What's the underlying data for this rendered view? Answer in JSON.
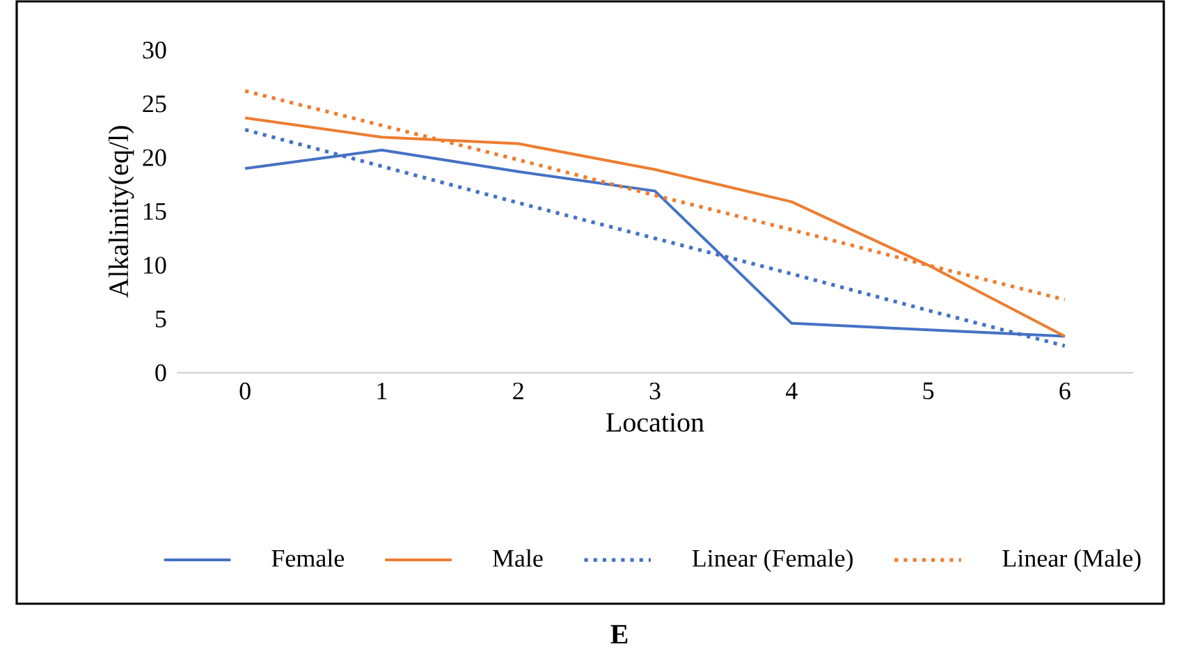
{
  "chart_data": {
    "type": "line",
    "xlabel": "Location",
    "ylabel": "Alkalinity(eq/l)",
    "categories": [
      "0",
      "1",
      "2",
      "3",
      "4",
      "5",
      "6"
    ],
    "series": [
      {
        "name": "Female",
        "color": "#4472c4",
        "values": [
          19.0,
          20.7,
          18.7,
          16.9,
          4.6,
          4.0,
          3.4
        ]
      },
      {
        "name": "Male",
        "color": "#ed7d31",
        "values": [
          23.7,
          21.9,
          21.3,
          18.9,
          15.9,
          10.0,
          3.4
        ]
      },
      {
        "name": "Linear (Female)",
        "color": "#4472c4",
        "line_style": "dotted",
        "values": [
          22.6,
          19.2,
          15.8,
          12.5,
          9.2,
          5.8,
          2.5
        ]
      },
      {
        "name": "Linear (Male)",
        "color": "#ed7d31",
        "line_style": "dotted",
        "values": [
          26.2,
          23.0,
          19.8,
          16.5,
          13.3,
          10.0,
          6.8
        ]
      }
    ],
    "ylim": [
      0,
      30
    ],
    "yticks": [
      0,
      5,
      10,
      15,
      20,
      25,
      30
    ],
    "legend": "bottom",
    "annotations": [
      "E"
    ]
  }
}
